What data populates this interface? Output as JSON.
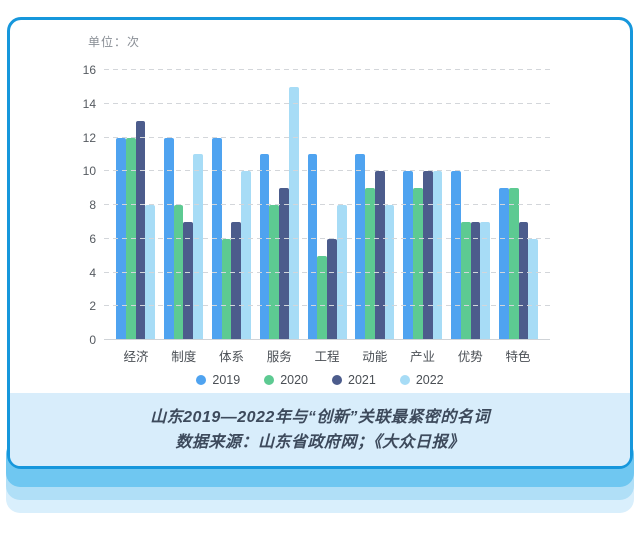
{
  "chart": {
    "unit_label": "单位：次"
  },
  "chart_data": {
    "type": "bar",
    "title": "山东2019—2022年与“创新”关联最紧密的名词",
    "unit": "次",
    "categories": [
      "经济",
      "制度",
      "体系",
      "服务",
      "工程",
      "动能",
      "产业",
      "优势",
      "特色"
    ],
    "series": [
      {
        "name": "2019",
        "color": "#4FA3F0",
        "values": [
          12,
          12,
          12,
          11,
          11,
          11,
          10,
          10,
          9
        ]
      },
      {
        "name": "2020",
        "color": "#5DCA92",
        "values": [
          12,
          8,
          6,
          8,
          5,
          9,
          9,
          7,
          9
        ]
      },
      {
        "name": "2021",
        "color": "#4C5C8C",
        "values": [
          13,
          7,
          7,
          9,
          6,
          10,
          10,
          7,
          7
        ]
      },
      {
        "name": "2022",
        "color": "#A7DCF6",
        "values": [
          8,
          11,
          10,
          15,
          8,
          8,
          10,
          7,
          6
        ]
      }
    ],
    "ylim": [
      0,
      16
    ],
    "ytick_step": 2,
    "yticks": [
      0,
      2,
      4,
      6,
      8,
      10,
      12,
      14,
      16
    ],
    "grid": "dashed-horizontal",
    "legend_position": "bottom",
    "legend": [
      "2019",
      "2020",
      "2021",
      "2022"
    ]
  },
  "caption": {
    "title": "山东2019—2022年与“创新”关联最紧密的名词",
    "source": "数据来源：山东省政府网；《大众日报》"
  },
  "colors": {
    "card_border": "#1697DC",
    "caption_band": "#D8EDFB",
    "strip_1": "#6FC7F1",
    "strip_2": "#B0DFF7",
    "strip_3": "#D9EFFC"
  }
}
